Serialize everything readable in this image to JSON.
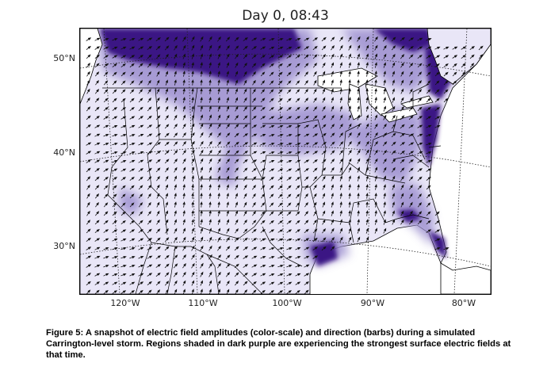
{
  "map": {
    "title": "Day 0, 08:43",
    "lat_labels": [
      "50°N",
      "40°N",
      "30°N"
    ],
    "lon_labels": [
      "120°W",
      "110°W",
      "100°W",
      "90°W",
      "80°W"
    ],
    "colors": {
      "strong_field": "#3b1384",
      "medium_field": "#9c8fcf",
      "weak_field": "#e9e6f7",
      "water": "#ffffff",
      "land_outline": "#000000",
      "barb": "#111111"
    }
  },
  "caption": "Figure 5: A snapshot of electric field amplitudes (color-scale) and direction (barbs) during a simulated Carrington-level storm. Regions shaded in dark purple are experiencing the strongest surface electric fields at that time."
}
